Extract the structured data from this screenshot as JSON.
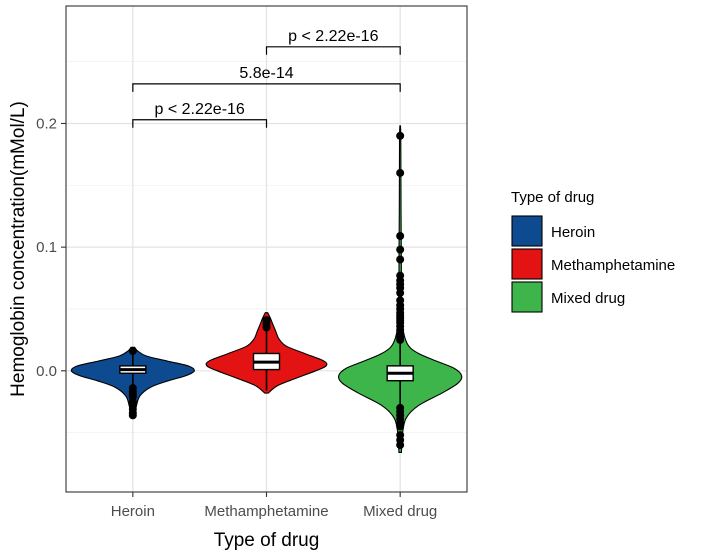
{
  "chart_data": {
    "type": "violin",
    "title": "",
    "xlabel": "Type of drug",
    "ylabel": "Hemoglobin concentration(mMol/L)",
    "ylim": [
      -0.098,
      0.295
    ],
    "yticks": [
      0.0,
      0.1,
      0.2
    ],
    "ytick_labels": [
      "0.0",
      "0.1",
      "0.2"
    ],
    "grid": true,
    "categories": [
      "Heroin",
      "Methamphetamine",
      "Mixed drug"
    ],
    "series": [
      {
        "name": "Heroin",
        "color": "#0e4a8f",
        "median": 0.001,
        "q1": -0.002,
        "q3": 0.004,
        "whisker_low": -0.012,
        "whisker_high": 0.013,
        "outliers": [
          0.016,
          -0.014,
          -0.017,
          -0.019,
          -0.021,
          -0.025,
          -0.028,
          -0.031,
          -0.034,
          -0.036
        ],
        "density": [
          [
            -0.037,
            0.03
          ],
          [
            -0.028,
            0.06
          ],
          [
            -0.02,
            0.12
          ],
          [
            -0.013,
            0.3
          ],
          [
            -0.008,
            0.58
          ],
          [
            -0.004,
            0.86
          ],
          [
            0.0,
            1.0
          ],
          [
            0.004,
            0.9
          ],
          [
            0.008,
            0.55
          ],
          [
            0.012,
            0.22
          ],
          [
            0.016,
            0.08
          ],
          [
            0.019,
            0.03
          ]
        ]
      },
      {
        "name": "Methamphetamine",
        "color": "#e41313",
        "median": 0.007,
        "q1": 0.001,
        "q3": 0.014,
        "whisker_low": -0.016,
        "whisker_high": 0.033,
        "outliers": [
          0.035,
          0.037,
          0.039,
          0.041
        ],
        "density": [
          [
            -0.018,
            0.03
          ],
          [
            -0.012,
            0.18
          ],
          [
            -0.006,
            0.48
          ],
          [
            0.0,
            0.8
          ],
          [
            0.004,
            0.97
          ],
          [
            0.008,
            0.93
          ],
          [
            0.014,
            0.62
          ],
          [
            0.02,
            0.32
          ],
          [
            0.026,
            0.2
          ],
          [
            0.032,
            0.15
          ],
          [
            0.038,
            0.1
          ],
          [
            0.043,
            0.06
          ],
          [
            0.047,
            0.02
          ]
        ]
      },
      {
        "name": "Mixed drug",
        "color": "#3db54a",
        "median": -0.002,
        "q1": -0.008,
        "q3": 0.004,
        "whisker_low": -0.028,
        "whisker_high": 0.022,
        "outliers": [
          0.19,
          0.16,
          0.109,
          0.098,
          0.09,
          0.077,
          0.073,
          0.07,
          0.067,
          0.063,
          0.057,
          0.053,
          0.05,
          0.047,
          0.045,
          0.043,
          0.041,
          0.039,
          0.036,
          0.033,
          0.03,
          0.027,
          0.025,
          -0.03,
          -0.033,
          -0.036,
          -0.039,
          -0.042,
          -0.045,
          -0.052,
          -0.056,
          -0.06
        ],
        "density": [
          [
            -0.066,
            0.02
          ],
          [
            -0.05,
            0.04
          ],
          [
            -0.038,
            0.1
          ],
          [
            -0.028,
            0.3
          ],
          [
            -0.018,
            0.68
          ],
          [
            -0.01,
            0.94
          ],
          [
            -0.004,
            1.0
          ],
          [
            0.002,
            0.88
          ],
          [
            0.008,
            0.58
          ],
          [
            0.014,
            0.3
          ],
          [
            0.02,
            0.14
          ],
          [
            0.03,
            0.06
          ],
          [
            0.045,
            0.03
          ],
          [
            0.07,
            0.02
          ],
          [
            0.1,
            0.018
          ],
          [
            0.13,
            0.014
          ],
          [
            0.16,
            0.012
          ],
          [
            0.19,
            0.01
          ],
          [
            0.198,
            0.005
          ]
        ]
      }
    ],
    "annotations": [
      {
        "label": "p < 2.22e-16",
        "from": "Methamphetamine",
        "to": "Mixed drug",
        "y": 0.262
      },
      {
        "label": "5.8e-14",
        "from": "Heroin",
        "to": "Mixed drug",
        "y": 0.232
      },
      {
        "label": "p < 2.22e-16",
        "from": "Heroin",
        "to": "Methamphetamine",
        "y": 0.203
      }
    ],
    "legend": {
      "title": "Type of drug",
      "position": "right",
      "entries": [
        "Heroin",
        "Methamphetamine",
        "Mixed drug"
      ]
    }
  }
}
